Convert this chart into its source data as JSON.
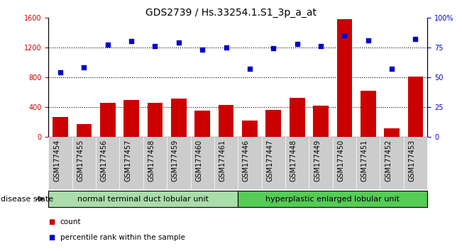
{
  "title": "GDS2739 / Hs.33254.1.S1_3p_a_at",
  "categories": [
    "GSM177454",
    "GSM177455",
    "GSM177456",
    "GSM177457",
    "GSM177458",
    "GSM177459",
    "GSM177460",
    "GSM177461",
    "GSM177446",
    "GSM177447",
    "GSM177448",
    "GSM177449",
    "GSM177450",
    "GSM177451",
    "GSM177452",
    "GSM177453"
  ],
  "bar_values": [
    270,
    170,
    460,
    490,
    455,
    510,
    350,
    430,
    220,
    360,
    520,
    415,
    1580,
    615,
    115,
    810
  ],
  "dot_values": [
    54,
    58,
    77,
    80,
    76,
    79,
    73,
    75,
    57,
    74,
    78,
    76,
    85,
    81,
    57,
    82
  ],
  "bar_color": "#cc0000",
  "dot_color": "#0000cc",
  "left_ylim": [
    0,
    1600
  ],
  "right_ylim": [
    0,
    100
  ],
  "left_yticks": [
    0,
    400,
    800,
    1200,
    1600
  ],
  "right_yticks": [
    0,
    25,
    50,
    75,
    100
  ],
  "right_yticklabels": [
    "0",
    "25",
    "50",
    "75",
    "100%"
  ],
  "grid_values": [
    400,
    800,
    1200
  ],
  "group1_label": "normal terminal duct lobular unit",
  "group2_label": "hyperplastic enlarged lobular unit",
  "group1_count": 8,
  "group2_count": 8,
  "disease_state_label": "disease state",
  "legend_bar_label": "count",
  "legend_dot_label": "percentile rank within the sample",
  "group1_color": "#aaddaa",
  "group2_color": "#55cc55",
  "xtick_bg_color": "#cccccc",
  "title_fontsize": 10,
  "tick_fontsize": 7,
  "label_fontsize": 8,
  "group_label_fontsize": 8
}
